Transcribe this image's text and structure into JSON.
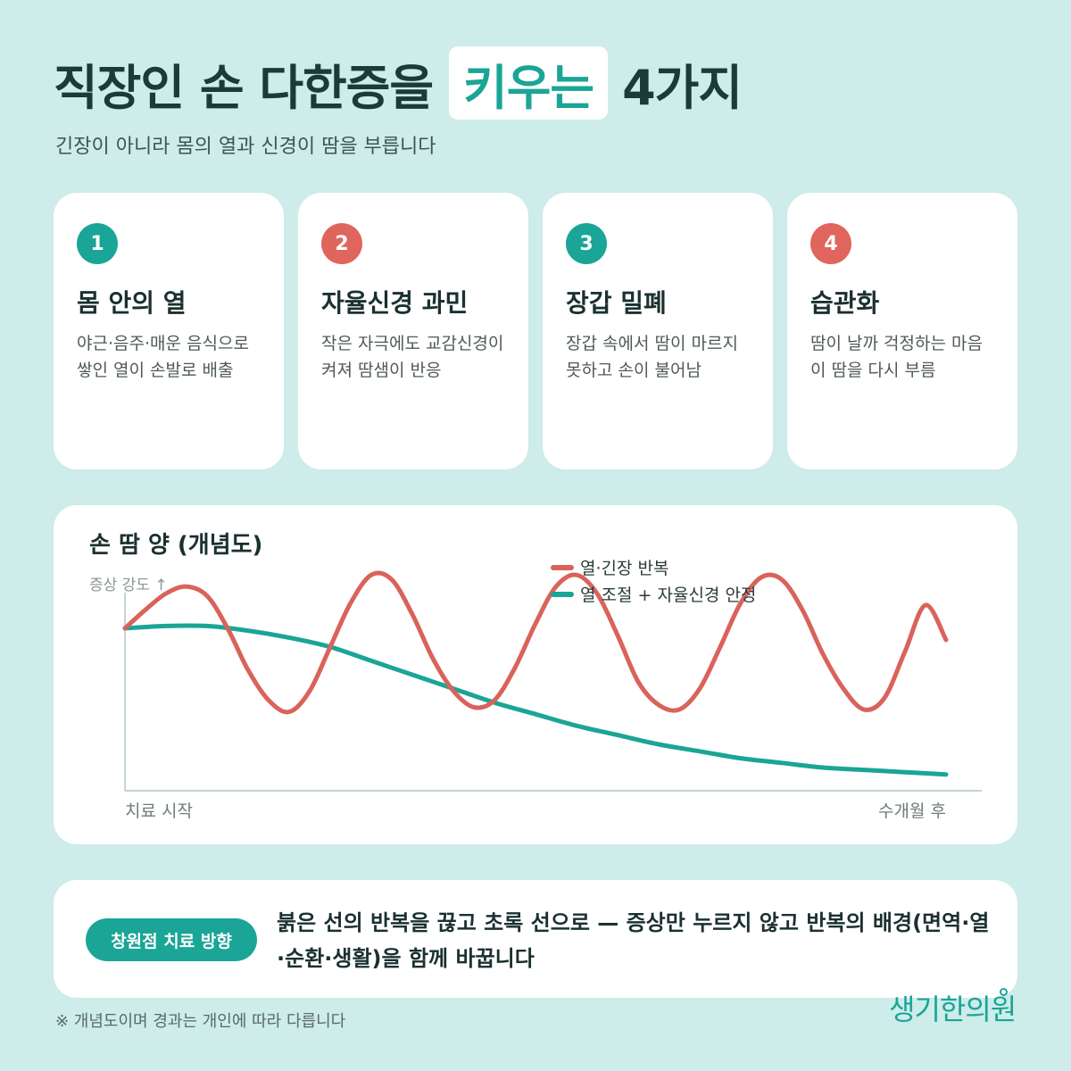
{
  "header": {
    "title_prefix": "직장인 손 다한증을",
    "title_highlight": "키우는",
    "title_suffix": "4가지",
    "subtitle": "긴장이 아니라 몸의 열과 신경이 땀을 부릅니다"
  },
  "cards": [
    {
      "number": "1",
      "title": "몸 안의 열",
      "desc": "야근·음주·매운 음식으로 쌓인 열이 손발로 배출",
      "color": "#1aa596"
    },
    {
      "number": "2",
      "title": "자율신경 과민",
      "desc": "작은 자극에도 교감신경이 켜져 땀샘이 반응",
      "color": "#e0655c"
    },
    {
      "number": "3",
      "title": "장갑 밀폐",
      "desc": "장갑 속에서 땀이 마르지 못하고 손이 불어남",
      "color": "#1aa596"
    },
    {
      "number": "4",
      "title": "습관화",
      "desc": "땀이 날까 걱정하는 마음이 땀을 다시 부름",
      "color": "#e0655c"
    }
  ],
  "chart_data": {
    "type": "line",
    "title": "손 땀 양 (개념도)",
    "ylabel": "증상 강도 ↑",
    "x_start_label": "치료 시작",
    "x_end_label": "수개월 후",
    "xlim": [
      0,
      100
    ],
    "ylim": [
      0,
      100
    ],
    "legend_position": "top-right",
    "grid": false,
    "series": [
      {
        "name": "열·긴장 반복",
        "color": "#d9635b",
        "x": [
          0,
          2.5,
          5,
          7.5,
          10,
          12.5,
          15,
          17.5,
          20,
          22.5,
          25,
          27.5,
          30,
          32.5,
          35,
          37.5,
          40,
          42.5,
          45,
          47.5,
          50,
          52.5,
          55,
          57.5,
          60,
          62.5,
          65,
          67.5,
          70,
          72.5,
          75,
          77.5,
          80,
          82.5,
          85,
          87.5,
          90,
          92.5,
          95,
          97.5,
          100
        ],
        "values": [
          70,
          78,
          85,
          88,
          84,
          70,
          52,
          39,
          34,
          43,
          62,
          81,
          93,
          91,
          76,
          57,
          43,
          36,
          39,
          53,
          72,
          88,
          93,
          85,
          67,
          47,
          37,
          35,
          44,
          62,
          81,
          92,
          91,
          78,
          59,
          44,
          35,
          40,
          60,
          80,
          65
        ]
      },
      {
        "name": "열 조절 + 자율신경 안정",
        "color": "#1aa596",
        "x": [
          0,
          5,
          10,
          15,
          20,
          25,
          30,
          35,
          40,
          45,
          50,
          55,
          60,
          65,
          70,
          75,
          80,
          85,
          90,
          95,
          100
        ],
        "values": [
          70,
          71,
          71,
          69,
          66,
          62,
          56,
          50,
          44,
          38,
          33,
          28,
          24,
          20,
          17,
          14,
          12,
          10,
          9,
          8,
          7
        ]
      }
    ]
  },
  "bottom": {
    "pill_label": "창원점 치료 방향",
    "message": "붉은 선의 반복을 끊고 초록 선으로 — 증상만 누르지 않고 반복의 배경(면역·열·순환·생활)을 함께 바꿉니다"
  },
  "footnote": "※ 개념도이며 경과는 개인에 따라 다릅니다",
  "brand": "생기한의원"
}
